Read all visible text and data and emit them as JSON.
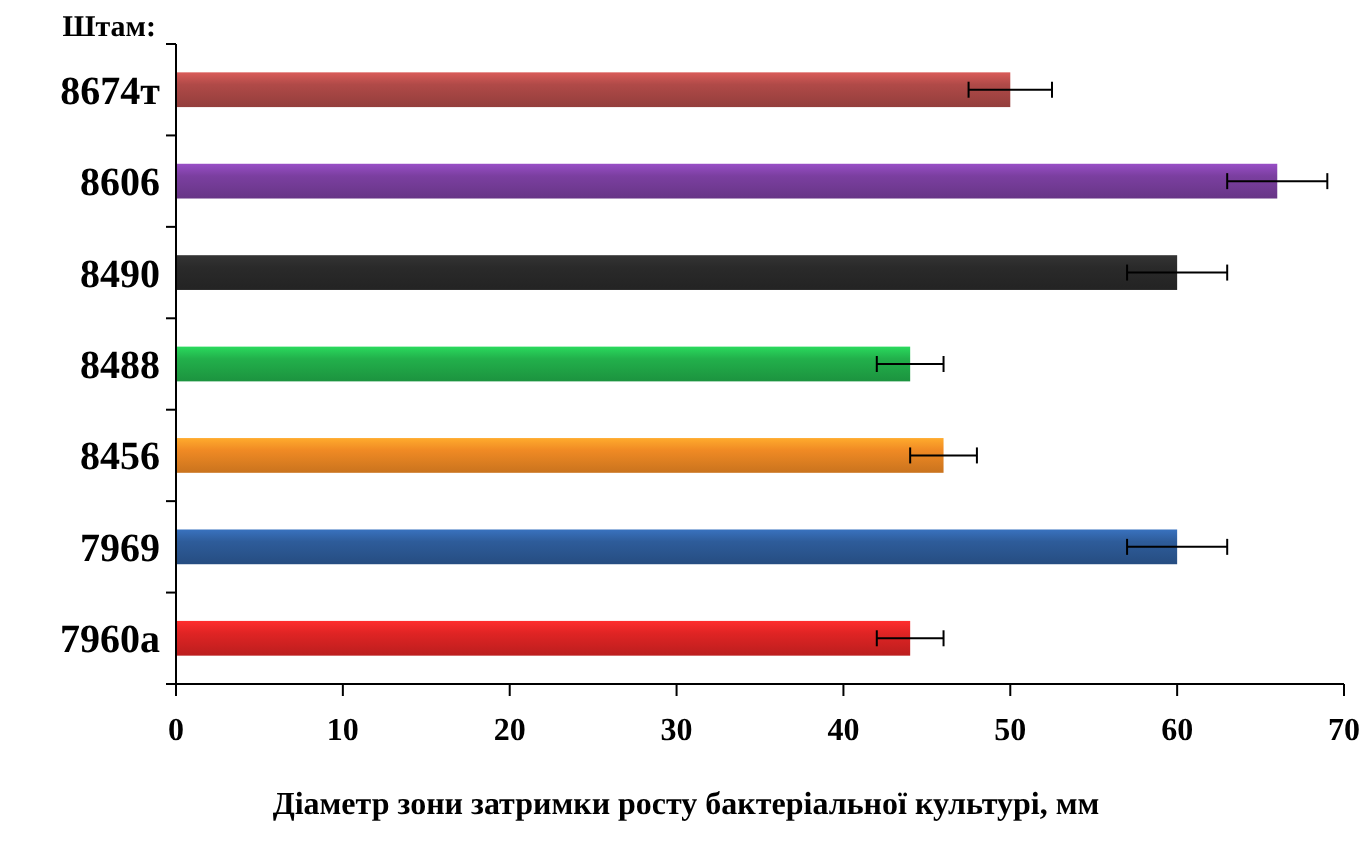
{
  "chart_data": {
    "type": "bar",
    "orientation": "horizontal",
    "ylabel": "Штам:",
    "xlabel": "Діаметр зони затримки росту бактеріальної культурі, мм",
    "categories": [
      "8674т",
      "8606",
      "8490",
      "8488",
      "8456",
      "7969",
      "7960a"
    ],
    "values": [
      50,
      66,
      60,
      44,
      46,
      60,
      44
    ],
    "errors": [
      2.5,
      3,
      3,
      2,
      2,
      3,
      2
    ],
    "colors": [
      "#b04a48",
      "#7b3fa0",
      "#2a2a2a",
      "#22b04b",
      "#f08a24",
      "#2e5c9a",
      "#e02424"
    ],
    "xlim": [
      0,
      70
    ],
    "xticks": [
      0,
      10,
      20,
      30,
      40,
      50,
      60,
      70
    ],
    "grid": false
  }
}
